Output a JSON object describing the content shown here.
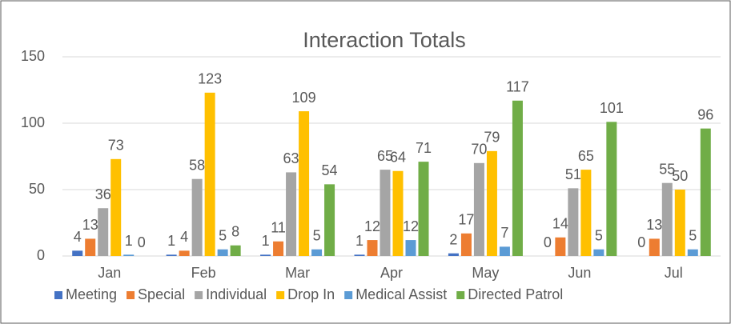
{
  "chart_data": {
    "type": "bar",
    "title": "Interaction Totals",
    "categories": [
      "Jan",
      "Feb",
      "Mar",
      "Apr",
      "May",
      "Jun",
      "Jul"
    ],
    "series": [
      {
        "name": "Meeting",
        "color": "#4472c4",
        "values": [
          4,
          1,
          1,
          1,
          2,
          0,
          0
        ]
      },
      {
        "name": "Special",
        "color": "#ed7d31",
        "values": [
          13,
          4,
          11,
          12,
          17,
          14,
          13
        ]
      },
      {
        "name": "Individual",
        "color": "#a5a5a5",
        "values": [
          36,
          58,
          63,
          65,
          70,
          51,
          55
        ]
      },
      {
        "name": "Drop In",
        "color": "#ffc000",
        "values": [
          73,
          123,
          109,
          64,
          79,
          65,
          50
        ]
      },
      {
        "name": "Medical Assist",
        "color": "#5b9bd5",
        "values": [
          1,
          5,
          5,
          12,
          7,
          5,
          5
        ]
      },
      {
        "name": "Directed Patrol",
        "color": "#70ad47",
        "values": [
          0,
          8,
          54,
          71,
          117,
          101,
          96
        ]
      }
    ],
    "ylim": [
      0,
      150
    ],
    "yticks": [
      0,
      50,
      100,
      150
    ],
    "grid": true,
    "legend": "bottom"
  }
}
